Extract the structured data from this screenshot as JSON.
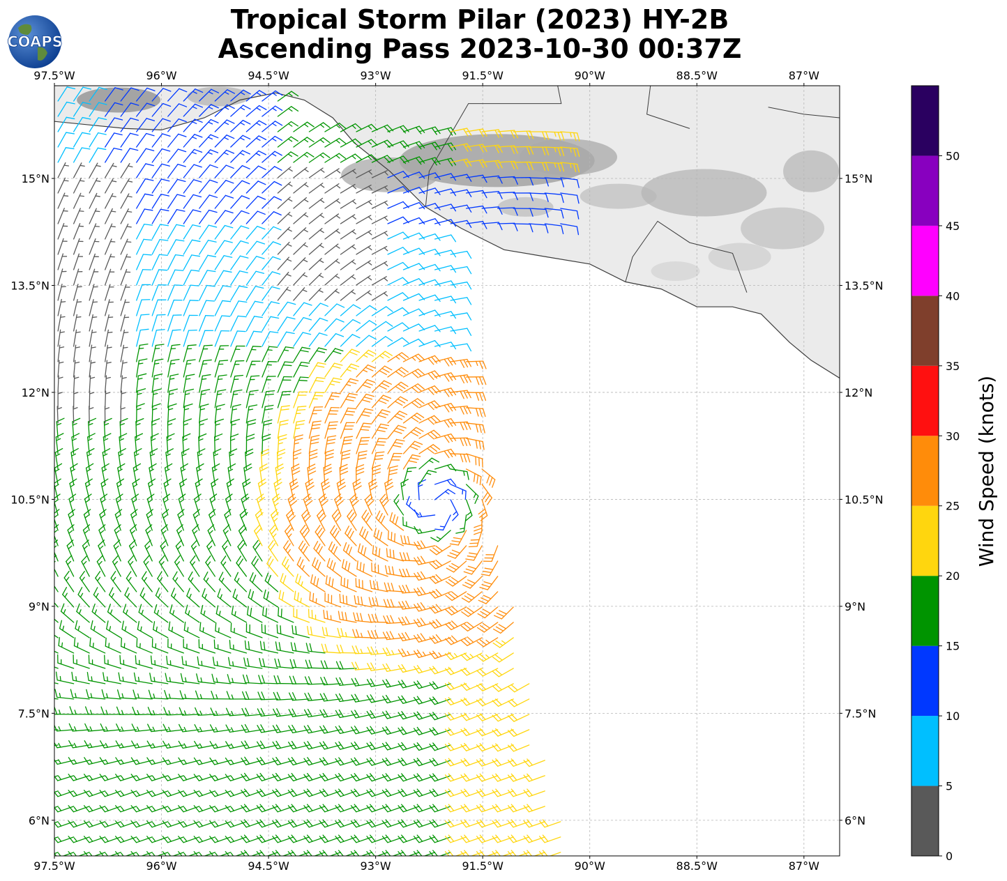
{
  "header": {
    "title_line1": "Tropical Storm Pilar (2023) HY-2B",
    "title_line2": "Ascending Pass 2023-10-30 00:37Z",
    "logo_text": "COAPS"
  },
  "map": {
    "lon_range": [
      -97.5,
      -86.5
    ],
    "lat_range": [
      5.5,
      16.3
    ],
    "lon_tick_labels": [
      "97.5°W",
      "96°W",
      "94.5°W",
      "93°W",
      "91.5°W",
      "90°W",
      "88.5°W",
      "87°W"
    ],
    "lat_tick_labels": [
      "6°N",
      "7.5°N",
      "9°N",
      "10.5°N",
      "12°N",
      "13.5°N",
      "15°N"
    ],
    "gridlines": true,
    "storm_center": {
      "lon": -92.15,
      "lat": 10.45
    },
    "swath_east_edge": [
      [
        -92.0,
        14.3
      ],
      [
        -91.5,
        11.0
      ],
      [
        -90.3,
        5.5
      ]
    ]
  },
  "colorbar": {
    "label": "Wind Speed (knots)",
    "tick_labels": [
      "0",
      "5",
      "10",
      "15",
      "20",
      "25",
      "30",
      "35",
      "40",
      "45",
      "50"
    ],
    "bins": [
      {
        "min": 0,
        "max": 5,
        "color": "#595959"
      },
      {
        "min": 5,
        "max": 10,
        "color": "#00bfff"
      },
      {
        "min": 10,
        "max": 15,
        "color": "#0038ff"
      },
      {
        "min": 15,
        "max": 20,
        "color": "#009400"
      },
      {
        "min": 20,
        "max": 25,
        "color": "#ffd60e"
      },
      {
        "min": 25,
        "max": 30,
        "color": "#ff8c0a"
      },
      {
        "min": 30,
        "max": 35,
        "color": "#ff1010"
      },
      {
        "min": 35,
        "max": 40,
        "color": "#7f3f2c"
      },
      {
        "min": 40,
        "max": 45,
        "color": "#ff00ff"
      },
      {
        "min": 45,
        "max": 50,
        "color": "#8800bf"
      },
      {
        "min": 50,
        "max": 55,
        "color": "#2a0060"
      }
    ]
  }
}
